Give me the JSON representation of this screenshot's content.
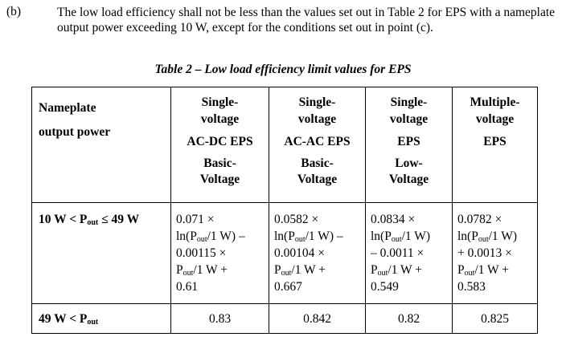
{
  "clause": {
    "label": "(b)",
    "text": "The low load efficiency shall not be less than the values set out in Table 2 for EPS with a nameplate output power exceeding 10 W, except for the conditions set out in point (c)."
  },
  "table": {
    "caption": "Table 2 – Low load efficiency limit values for EPS",
    "headers": [
      {
        "lines": [
          "Nameplate",
          "output power"
        ]
      },
      {
        "top": [
          "Single-",
          "voltage"
        ],
        "mid": "AC-DC EPS",
        "bottom": [
          "Basic-",
          "Voltage"
        ]
      },
      {
        "top": [
          "Single-",
          "voltage"
        ],
        "mid": "AC-AC EPS",
        "bottom": [
          "Basic-",
          "Voltage"
        ]
      },
      {
        "top": [
          "Single-",
          "voltage"
        ],
        "mid": "EPS",
        "bottom": [
          "Low-",
          "Voltage"
        ]
      },
      {
        "top": [
          "Multiple-",
          "voltage"
        ],
        "mid": "EPS",
        "bottom": [
          "",
          ""
        ]
      }
    ],
    "rows": [
      {
        "label": [
          {
            "t": "10 W < P"
          },
          {
            "t": "out",
            "sub": true
          },
          {
            "t": " ≤ 49 W"
          }
        ],
        "cells": [
          [
            [
              {
                "t": "0.071 ×"
              }
            ],
            [
              {
                "t": "ln(P"
              },
              {
                "t": "out",
                "sub": true
              },
              {
                "t": "/1 W) –"
              }
            ],
            [
              {
                "t": "0.00115 ×"
              }
            ],
            [
              {
                "t": "P"
              },
              {
                "t": "out",
                "sub": true
              },
              {
                "t": "/1 W +"
              }
            ],
            [
              {
                "t": "0.61"
              }
            ]
          ],
          [
            [
              {
                "t": "0.0582 ×"
              }
            ],
            [
              {
                "t": "ln(P"
              },
              {
                "t": "out",
                "sub": true
              },
              {
                "t": "/1 W) –"
              }
            ],
            [
              {
                "t": "0.00104 ×"
              }
            ],
            [
              {
                "t": "P"
              },
              {
                "t": "out",
                "sub": true
              },
              {
                "t": "/1 W +"
              }
            ],
            [
              {
                "t": "0.667"
              }
            ]
          ],
          [
            [
              {
                "t": "0.0834 ×"
              }
            ],
            [
              {
                "t": "ln(P"
              },
              {
                "t": "out",
                "sub": true
              },
              {
                "t": "/1 W)"
              }
            ],
            [
              {
                "t": "– 0.0011 ×"
              }
            ],
            [
              {
                "t": "P"
              },
              {
                "t": "out",
                "sub": true
              },
              {
                "t": "/1 W +"
              }
            ],
            [
              {
                "t": "0.549"
              }
            ]
          ],
          [
            [
              {
                "t": "0.0782 ×"
              }
            ],
            [
              {
                "t": "ln(P"
              },
              {
                "t": "out",
                "sub": true
              },
              {
                "t": "/1 W)"
              }
            ],
            [
              {
                "t": "+ 0.0013 ×"
              }
            ],
            [
              {
                "t": "P"
              },
              {
                "t": "out",
                "sub": true
              },
              {
                "t": "/1 W +"
              }
            ],
            [
              {
                "t": "0.583"
              }
            ]
          ]
        ]
      },
      {
        "label": [
          {
            "t": "49 W < P"
          },
          {
            "t": "out",
            "sub": true
          }
        ],
        "values": [
          "0.83",
          "0.842",
          "0.82",
          "0.825"
        ]
      }
    ]
  }
}
